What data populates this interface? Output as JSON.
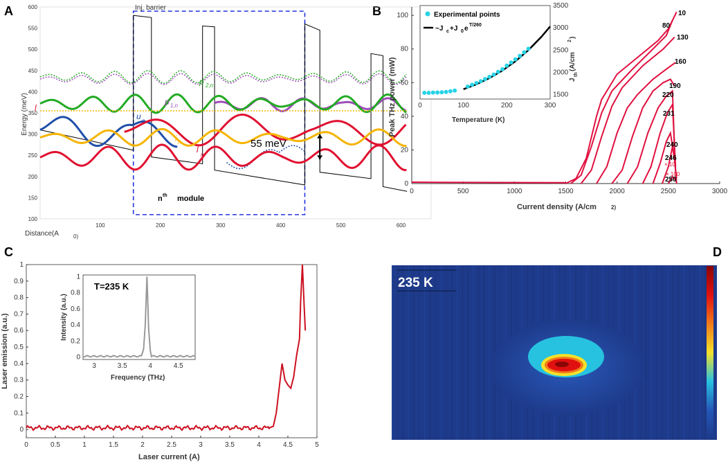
{
  "panels": {
    "A": "A",
    "B": "B",
    "C": "C",
    "D": "D"
  },
  "colors": {
    "red": "#e01030",
    "green": "#22aa22",
    "blue": "#1f4fa8",
    "orange": "#f5b400",
    "purple": "#9c4db8",
    "cyan": "#27d3e6",
    "crimson": "#e0103f",
    "gray": "#999999"
  },
  "chart_data": [
    {
      "id": "A",
      "type": "line",
      "title": "",
      "xlabel": "Distance(A",
      "xlabel_suffix": "0)",
      "ylabel": "Energy (meV)",
      "xlim": [
        0,
        650
      ],
      "ylim": [
        100,
        600
      ],
      "xticks": [
        100,
        200,
        300,
        400,
        500,
        600
      ],
      "yticks": [
        100,
        150,
        200,
        250,
        300,
        350,
        400,
        450,
        500,
        550,
        600
      ],
      "annotations": {
        "barrier": "Inj. barrier",
        "module": "module",
        "module_n": "n",
        "module_th": "th",
        "energy": "55 meV"
      },
      "state_labels": [
        "p",
        "2,n",
        "p",
        "1,n",
        "u",
        "n",
        "i",
        "n",
        "l",
        "n",
        "l"
      ],
      "module_box_x": [
        155,
        440
      ],
      "module_box_y": [
        110,
        590
      ],
      "energy_arrow": {
        "x": 465,
        "y": [
          240,
          300
        ]
      },
      "potential": [
        [
          0,
          310
        ],
        [
          155,
          262
        ],
        [
          155,
          580
        ],
        [
          185,
          575
        ],
        [
          185,
          246
        ],
        [
          270,
          230
        ],
        [
          270,
          555
        ],
        [
          290,
          553
        ],
        [
          290,
          215
        ],
        [
          440,
          180
        ],
        [
          440,
          560
        ],
        [
          465,
          545
        ],
        [
          465,
          210
        ],
        [
          550,
          195
        ],
        [
          550,
          490
        ],
        [
          570,
          485
        ],
        [
          570,
          176
        ],
        [
          610,
          165
        ]
      ],
      "levels": [
        {
          "name": "p2n dotted (green)",
          "color": "green",
          "dash": true,
          "y": 435,
          "amp": 15,
          "period": 55,
          "x": [
            0,
            610
          ]
        },
        {
          "name": "p2n dotted (purple)",
          "color": "purple",
          "dash": true,
          "y": 430,
          "amp": 13,
          "period": 55,
          "x": [
            0,
            610
          ]
        },
        {
          "name": "p1n",
          "color": "purple",
          "dash": false,
          "y": 370,
          "amp": 16,
          "period": 70,
          "x": [
            290,
            610
          ]
        },
        {
          "name": "green main",
          "color": "green",
          "dash": false,
          "y": 372,
          "amp": 22,
          "period": 70,
          "x": [
            0,
            610
          ]
        },
        {
          "name": "orange dotted",
          "color": "orange",
          "dash": true,
          "y": 355,
          "amp": 0,
          "period": 60,
          "x": [
            0,
            610
          ]
        },
        {
          "name": "u_n",
          "color": "blue",
          "dash": false,
          "y": 310,
          "amp": 40,
          "period": 130,
          "x": [
            0,
            230
          ]
        },
        {
          "name": "red upper",
          "color": "red",
          "dash": false,
          "y": 310,
          "amp": 38,
          "period": 150,
          "x": [
            140,
            610
          ]
        },
        {
          "name": "i_n",
          "color": "orange",
          "dash": false,
          "y": 292,
          "amp": 20,
          "period": 90,
          "x": [
            0,
            610
          ]
        },
        {
          "name": "l_n (blue dotted)",
          "color": "blue",
          "dash": true,
          "y": 245,
          "amp": 40,
          "period": 180,
          "x": [
            310,
            440
          ]
        },
        {
          "name": "l_n (red)",
          "color": "red",
          "dash": false,
          "y": 245,
          "amp": 30,
          "period": 90,
          "x": [
            0,
            610
          ]
        }
      ]
    },
    {
      "id": "B",
      "type": "line",
      "title": "",
      "xlabel": "Current density (A/cm",
      "xlabel_suffix": "2)",
      "ylabel": "Peak THz power (mW)",
      "xlim": [
        0,
        3000
      ],
      "ylim": [
        0,
        105
      ],
      "xticks": [
        0,
        500,
        1000,
        1500,
        2000,
        2500,
        3000
      ],
      "yticks": [
        0,
        20,
        40,
        60,
        80,
        100
      ],
      "series": [
        {
          "name": "10",
          "values": [
            [
              1500,
              0
            ],
            [
              1600,
              3
            ],
            [
              1700,
              15
            ],
            [
              1800,
              40
            ],
            [
              1850,
              50
            ],
            [
              2000,
              65
            ],
            [
              2200,
              75
            ],
            [
              2400,
              85
            ],
            [
              2500,
              92
            ],
            [
              2580,
              102
            ]
          ]
        },
        {
          "name": "80",
          "values": [
            [
              1550,
              0
            ],
            [
              1650,
              5
            ],
            [
              1750,
              22
            ],
            [
              1850,
              42
            ],
            [
              1950,
              55
            ],
            [
              2150,
              68
            ],
            [
              2350,
              80
            ],
            [
              2480,
              88
            ],
            [
              2540,
              97
            ]
          ]
        },
        {
          "name": "130",
          "values": [
            [
              1650,
              0
            ],
            [
              1750,
              8
            ],
            [
              1850,
              28
            ],
            [
              1950,
              46
            ],
            [
              2050,
              57
            ],
            [
              2250,
              70
            ],
            [
              2450,
              80
            ],
            [
              2560,
              87
            ]
          ]
        },
        {
          "name": "160",
          "values": [
            [
              1800,
              0
            ],
            [
              1900,
              10
            ],
            [
              2000,
              30
            ],
            [
              2100,
              45
            ],
            [
              2200,
              53
            ],
            [
              2350,
              62
            ],
            [
              2480,
              68
            ],
            [
              2570,
              72
            ]
          ]
        },
        {
          "name": "190",
          "values": [
            [
              1950,
              0
            ],
            [
              2050,
              8
            ],
            [
              2150,
              28
            ],
            [
              2250,
              45
            ],
            [
              2350,
              55
            ],
            [
              2450,
              60
            ],
            [
              2520,
              62
            ],
            [
              2560,
              58
            ]
          ]
        },
        {
          "name": "220",
          "values": [
            [
              2100,
              0
            ],
            [
              2200,
              10
            ],
            [
              2300,
              30
            ],
            [
              2400,
              45
            ],
            [
              2480,
              52
            ],
            [
              2540,
              55
            ],
            [
              2560,
              20
            ]
          ]
        },
        {
          "name": "231",
          "values": [
            [
              2250,
              0
            ],
            [
              2330,
              10
            ],
            [
              2420,
              30
            ],
            [
              2490,
              42
            ],
            [
              2540,
              47
            ],
            [
              2570,
              10
            ]
          ]
        },
        {
          "name": "240",
          "values": [
            [
              2350,
              0
            ],
            [
              2420,
              12
            ],
            [
              2480,
              25
            ],
            [
              2520,
              30
            ],
            [
              2560,
              15
            ],
            [
              2580,
              0
            ]
          ]
        },
        {
          "name": "246",
          "values": [
            [
              2440,
              0
            ],
            [
              2500,
              10
            ],
            [
              2540,
              22
            ],
            [
              2560,
              14
            ],
            [
              2580,
              3
            ]
          ]
        },
        {
          "name": "250",
          "values": [
            [
              2500,
              0
            ],
            [
              2540,
              4
            ],
            [
              2560,
              3
            ],
            [
              2580,
              1
            ]
          ]
        }
      ],
      "curve_labels": [
        "10",
        "80",
        "130",
        "160",
        "190",
        "220",
        "231",
        "240",
        "246",
        "250"
      ],
      "scale_notes": [
        "× 10",
        "× 100"
      ],
      "inset": {
        "type": "scatter",
        "xlabel": "Temperature (K)",
        "ylabel": "J",
        "ylabel_sub": "th",
        "ylabel_units": " (A/cm",
        "ylabel_units_sup": "2",
        "ylabel_units_end": ")",
        "xlim": [
          0,
          300
        ],
        "ylim": [
          1400,
          3500
        ],
        "xticks": [
          0,
          100,
          200,
          300
        ],
        "yticks": [
          1500,
          2000,
          2500,
          3000,
          3500
        ],
        "legend": {
          "points": "Experimental points",
          "fit_prefix": "~J",
          "fit_c": "c",
          "fit_plus": "+J",
          "fit_0": "0",
          "fit_e": "e",
          "fit_exp": "T/260"
        },
        "points": [
          [
            10,
            1540
          ],
          [
            20,
            1540
          ],
          [
            30,
            1545
          ],
          [
            40,
            1548
          ],
          [
            50,
            1552
          ],
          [
            60,
            1560
          ],
          [
            70,
            1575
          ],
          [
            80,
            1590
          ],
          [
            110,
            1680
          ],
          [
            120,
            1720
          ],
          [
            130,
            1760
          ],
          [
            140,
            1800
          ],
          [
            150,
            1850
          ],
          [
            160,
            1900
          ],
          [
            170,
            1950
          ],
          [
            180,
            2010
          ],
          [
            190,
            2070
          ],
          [
            200,
            2150
          ],
          [
            210,
            2220
          ],
          [
            220,
            2290
          ],
          [
            230,
            2370
          ],
          [
            240,
            2450
          ],
          [
            250,
            2530
          ]
        ],
        "fit": [
          [
            100,
            1620
          ],
          [
            130,
            1730
          ],
          [
            160,
            1870
          ],
          [
            190,
            2040
          ],
          [
            220,
            2250
          ],
          [
            250,
            2500
          ],
          [
            280,
            2800
          ],
          [
            300,
            3030
          ]
        ]
      }
    },
    {
      "id": "C",
      "type": "line",
      "title": "",
      "xlabel": "Laser current (A)",
      "ylabel": "Laser emission (a.u.)",
      "xlim": [
        0,
        5
      ],
      "ylim": [
        -0.05,
        1
      ],
      "xticks": [
        0,
        0.5,
        1,
        1.5,
        2,
        2.5,
        3,
        3.5,
        4,
        4.5,
        5
      ],
      "yticks": [
        0,
        0.1,
        0.2,
        0.3,
        0.4,
        0.5,
        0.6,
        0.7,
        0.8,
        0.9,
        1
      ],
      "series": [
        {
          "name": "emission",
          "values": [
            [
              0,
              0.01
            ],
            [
              4.18,
              0.01
            ],
            [
              4.25,
              0.02
            ],
            [
              4.3,
              0.1
            ],
            [
              4.35,
              0.25
            ],
            [
              4.4,
              0.4
            ],
            [
              4.45,
              0.3
            ],
            [
              4.5,
              0.27
            ],
            [
              4.55,
              0.25
            ],
            [
              4.6,
              0.32
            ],
            [
              4.65,
              0.45
            ],
            [
              4.7,
              0.55
            ],
            [
              4.72,
              0.78
            ],
            [
              4.75,
              1.0
            ],
            [
              4.78,
              0.75
            ],
            [
              4.8,
              0.6
            ]
          ]
        }
      ],
      "inset": {
        "type": "line",
        "label": "T=235 K",
        "xlabel": "Frequency (THz)",
        "ylabel": "Intensity (a.u.)",
        "xlim": [
          2.8,
          4.8
        ],
        "ylim": [
          -0.03,
          1.02
        ],
        "xticks": [
          3,
          3.5,
          4,
          4.5
        ],
        "yticks": [
          0,
          0.2,
          0.4,
          0.6,
          0.8,
          1
        ],
        "series": [
          {
            "name": "spectrum",
            "values": [
              [
                2.8,
                0.01
              ],
              [
                3.8,
                0.01
              ],
              [
                3.85,
                0.03
              ],
              [
                3.88,
                0.1
              ],
              [
                3.91,
                0.4
              ],
              [
                3.93,
                0.8
              ],
              [
                3.94,
                1.0
              ],
              [
                3.95,
                0.8
              ],
              [
                3.97,
                0.35
              ],
              [
                4.0,
                0.08
              ],
              [
                4.05,
                0.03
              ],
              [
                4.8,
                0.01
              ]
            ]
          }
        ]
      }
    },
    {
      "id": "D",
      "type": "heatmap",
      "title": "235 K",
      "description_colors": [
        "#1e3a8a",
        "#2457b8",
        "#27c2e0",
        "#f4e12a",
        "#f07a1a",
        "#e01010",
        "#8a0505"
      ],
      "colorbar": [
        "#8a0505",
        "#e01010",
        "#f07a1a",
        "#f4e12a",
        "#27c2e0",
        "#2457b8",
        "#1e3a8a"
      ]
    }
  ]
}
